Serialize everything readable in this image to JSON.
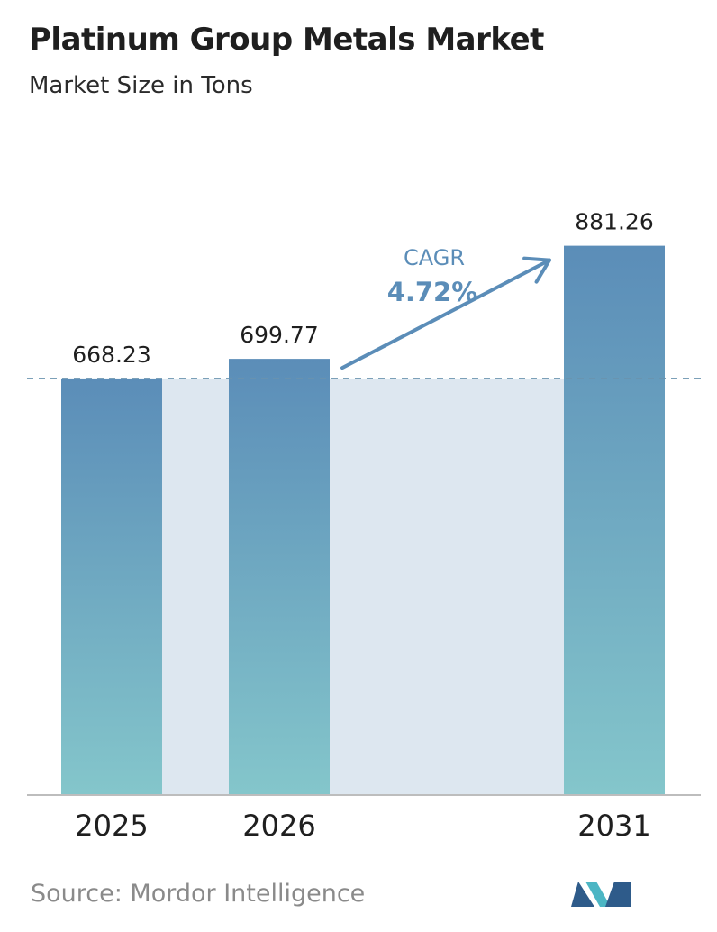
{
  "header": {
    "title": "Platinum Group Metals Market",
    "subtitle": "Market Size in Tons"
  },
  "chart_data": {
    "type": "bar",
    "categories": [
      "2025",
      "2026",
      "2031"
    ],
    "values": [
      668.23,
      699.77,
      881.26
    ],
    "value_labels": [
      "668.23",
      "699.77",
      "881.26"
    ],
    "title": "Platinum Group Metals Market",
    "subtitle": "Market Size in Tons",
    "ylim": [
      0,
      940
    ],
    "grid": false,
    "reference_line": 668.23,
    "annotation": {
      "label": "CAGR",
      "value": "4.72%"
    },
    "colors": {
      "bar_top": "#5b8db8",
      "bar_bottom": "#84c6cb",
      "band": "#dde7f0",
      "arrow": "#5b8db8",
      "dashed_line": "#6a93ae",
      "axis": "#bdbdbd",
      "cagr_text": "#5b8db8"
    }
  },
  "footer": {
    "source": "Source:  Mordor Intelligence",
    "logo_name": "mordor-intelligence-logo",
    "logo_colors": {
      "dark": "#2e5b8a",
      "light": "#4cb6c4"
    }
  }
}
